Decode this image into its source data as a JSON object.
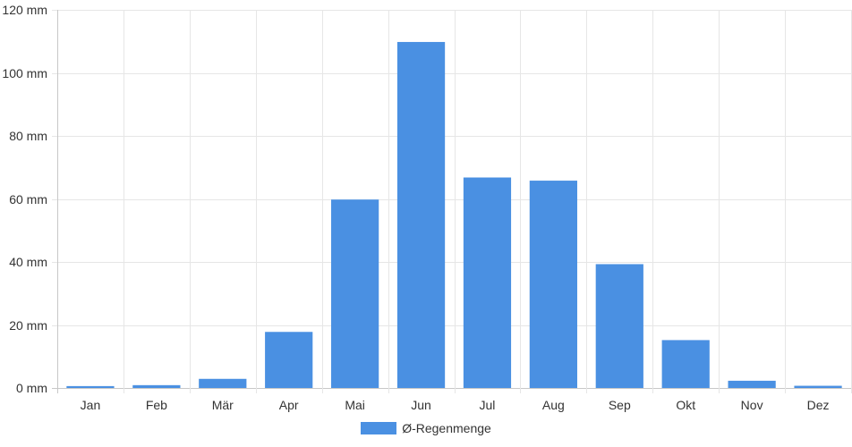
{
  "chart_data": {
    "type": "bar",
    "categories": [
      "Jan",
      "Feb",
      "Mär",
      "Apr",
      "Mai",
      "Jun",
      "Jul",
      "Aug",
      "Sep",
      "Okt",
      "Nov",
      "Dez"
    ],
    "series": [
      {
        "name": "Ø-Regenmenge",
        "values": [
          0.6,
          0.9,
          2.9,
          17.8,
          59.8,
          109.8,
          66.8,
          65.8,
          39.3,
          15.2,
          2.3,
          0.7
        ],
        "color": "#4a90e2"
      }
    ],
    "ylim": [
      0,
      120
    ],
    "yticks": [
      0,
      20,
      40,
      60,
      80,
      100,
      120
    ],
    "ytick_labels": [
      "0 mm",
      "20 mm",
      "40 mm",
      "60 mm",
      "80 mm",
      "100 mm",
      "120 mm"
    ],
    "grid": true,
    "legend_position": "bottom-center"
  }
}
